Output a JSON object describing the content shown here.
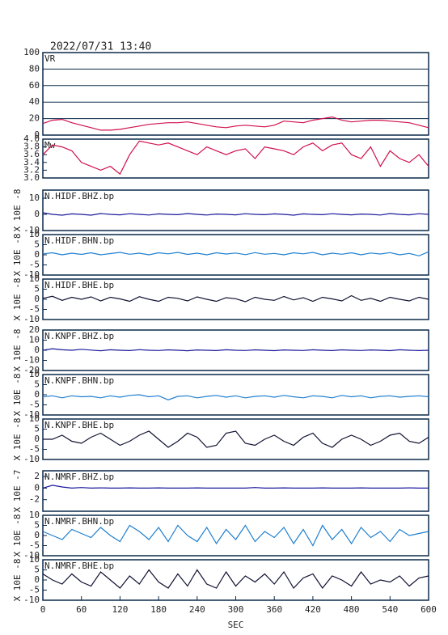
{
  "header": {
    "title": "2022/07/31 13:40"
  },
  "chart_data": [
    {
      "type": "line",
      "xlim": [
        0,
        600
      ],
      "ylim": [
        0,
        100
      ],
      "yticks": [
        0,
        20,
        40,
        60,
        80,
        100
      ],
      "grid": true,
      "x": [
        0,
        15,
        30,
        45,
        60,
        75,
        90,
        105,
        120,
        135,
        150,
        165,
        180,
        195,
        210,
        225,
        240,
        255,
        270,
        285,
        300,
        315,
        330,
        345,
        360,
        375,
        390,
        405,
        420,
        435,
        450,
        465,
        480,
        495,
        510,
        525,
        540,
        555,
        570,
        585,
        600
      ],
      "series": [
        {
          "name": "VR",
          "color": "#d0104c",
          "values": [
            14,
            18,
            19,
            15,
            12,
            9,
            6,
            6,
            7,
            9,
            11,
            13,
            14,
            15,
            15,
            16,
            14,
            12,
            10,
            9,
            11,
            12,
            11,
            10,
            12,
            17,
            16,
            15,
            18,
            20,
            22,
            18,
            16,
            17,
            18,
            18,
            17,
            16,
            15,
            12,
            9
          ]
        }
      ]
    },
    {
      "type": "line",
      "xlim": [
        0,
        600
      ],
      "ylim": [
        3,
        4
      ],
      "yticks": [
        {
          "value": 3,
          "label": "3.0"
        },
        3.2,
        3.4,
        3.6,
        3.8,
        {
          "value": 4,
          "label": "4.0"
        }
      ],
      "grid": false,
      "x": [
        0,
        15,
        30,
        45,
        60,
        75,
        90,
        105,
        120,
        135,
        150,
        165,
        180,
        195,
        210,
        225,
        240,
        255,
        270,
        285,
        300,
        315,
        330,
        345,
        360,
        375,
        390,
        405,
        420,
        435,
        450,
        465,
        480,
        495,
        510,
        525,
        540,
        555,
        570,
        585,
        600
      ],
      "series": [
        {
          "name": "Mw",
          "color": "#d0104c",
          "values": [
            3.6,
            3.85,
            3.8,
            3.7,
            3.4,
            3.3,
            3.2,
            3.3,
            3.1,
            3.6,
            3.95,
            3.9,
            3.85,
            3.9,
            3.8,
            3.7,
            3.6,
            3.8,
            3.7,
            3.6,
            3.7,
            3.75,
            3.5,
            3.8,
            3.75,
            3.7,
            3.6,
            3.8,
            3.9,
            3.7,
            3.85,
            3.9,
            3.6,
            3.5,
            3.8,
            3.3,
            3.7,
            3.5,
            3.4,
            3.6,
            3.3
          ]
        }
      ]
    },
    {
      "type": "line",
      "xlim": [
        0,
        600
      ],
      "ylim": [
        -10,
        15
      ],
      "yticks": [
        -10,
        0,
        10
      ],
      "ylabel": "X 10E -8",
      "x": [
        0,
        15,
        30,
        45,
        60,
        75,
        90,
        105,
        120,
        135,
        150,
        165,
        180,
        195,
        210,
        225,
        240,
        255,
        270,
        285,
        300,
        315,
        330,
        345,
        360,
        375,
        390,
        405,
        420,
        435,
        450,
        465,
        480,
        495,
        510,
        525,
        540,
        555,
        570,
        585,
        600
      ],
      "series": [
        {
          "name": "N.HIDF.BHZ.bp",
          "color": "#1a1a9a",
          "values": [
            1,
            0,
            -0.5,
            0.3,
            0,
            -0.5,
            0.5,
            0,
            -0.3,
            0.4,
            0,
            -0.4,
            0.3,
            0,
            -0.2,
            0.5,
            0,
            -0.4,
            0.2,
            0,
            -0.3,
            0.4,
            0,
            -0.2,
            0.3,
            0,
            -0.5,
            0.3,
            0,
            -0.2,
            0.4,
            0,
            -0.3,
            0.2,
            0,
            -0.4,
            0.5,
            0,
            -0.3,
            0.4,
            0
          ]
        }
      ]
    },
    {
      "type": "line",
      "xlim": [
        0,
        600
      ],
      "ylim": [
        -10,
        10
      ],
      "yticks": [
        -10,
        -5,
        0,
        5,
        10
      ],
      "ylabel": "X 10E -8",
      "x": [
        0,
        15,
        30,
        45,
        60,
        75,
        90,
        105,
        120,
        135,
        150,
        165,
        180,
        195,
        210,
        225,
        240,
        255,
        270,
        285,
        300,
        315,
        330,
        345,
        360,
        375,
        390,
        405,
        420,
        435,
        450,
        465,
        480,
        495,
        510,
        525,
        540,
        555,
        570,
        585,
        600
      ],
      "series": [
        {
          "name": "N.HIDF.BHN.bp",
          "color": "#1e7fd0",
          "values": [
            0.5,
            1,
            0,
            0.8,
            0.2,
            1,
            0,
            0.6,
            1.2,
            0.3,
            0.8,
            0,
            1,
            0.5,
            1.2,
            0.2,
            0.8,
            0,
            1,
            0.4,
            0.9,
            0.1,
            1.1,
            0.3,
            0.7,
            0,
            1,
            0.5,
            1.2,
            0,
            0.8,
            0.3,
            1,
            0,
            0.9,
            0.4,
            1.1,
            0,
            0.7,
            -0.5,
            1.5
          ]
        }
      ]
    },
    {
      "type": "line",
      "xlim": [
        0,
        600
      ],
      "ylim": [
        -10,
        10
      ],
      "yticks": [
        -10,
        -5,
        0,
        5,
        10
      ],
      "ylabel": "X 10E -8",
      "x": [
        0,
        15,
        30,
        45,
        60,
        75,
        90,
        105,
        120,
        135,
        150,
        165,
        180,
        195,
        210,
        225,
        240,
        255,
        270,
        285,
        300,
        315,
        330,
        345,
        360,
        375,
        390,
        405,
        420,
        435,
        450,
        465,
        480,
        495,
        510,
        525,
        540,
        555,
        570,
        585,
        600
      ],
      "series": [
        {
          "name": "N.HIDF.BHE.bp",
          "color": "#111133",
          "values": [
            0.5,
            1.5,
            -0.5,
            1,
            0,
            1.2,
            -0.8,
            1,
            0.2,
            -1,
            1.3,
            0,
            -1,
            1,
            0.5,
            -0.8,
            1.2,
            0,
            -1,
            0.8,
            0.3,
            -1.2,
            1,
            0,
            -0.5,
            1.4,
            -0.3,
            0.8,
            -1,
            1,
            0.2,
            -0.8,
            1.8,
            -0.5,
            0.5,
            -1,
            1,
            0,
            -0.8,
            1,
            0
          ]
        }
      ]
    },
    {
      "type": "line",
      "xlim": [
        0,
        600
      ],
      "ylim": [
        -20,
        20
      ],
      "yticks": [
        -20,
        -10,
        0,
        10,
        20
      ],
      "ylabel": "X 10E -8",
      "x": [
        0,
        15,
        30,
        45,
        60,
        75,
        90,
        105,
        120,
        135,
        150,
        165,
        180,
        195,
        210,
        225,
        240,
        255,
        270,
        285,
        300,
        315,
        330,
        345,
        360,
        375,
        390,
        405,
        420,
        435,
        450,
        465,
        480,
        495,
        510,
        525,
        540,
        555,
        570,
        585,
        600
      ],
      "series": [
        {
          "name": "N.KNPF.BHZ.bp",
          "color": "#1a1a9a",
          "values": [
            0,
            1.5,
            0.5,
            0,
            1,
            0.2,
            -0.5,
            0.5,
            0,
            -0.3,
            0.6,
            0,
            -0.2,
            0.4,
            0,
            -0.5,
            0.3,
            0,
            -0.3,
            0.5,
            0,
            -0.2,
            0.4,
            0,
            -0.4,
            0.3,
            0,
            -0.2,
            0.5,
            0,
            -0.3,
            0.4,
            0,
            -0.2,
            0.3,
            0,
            -0.4,
            0.5,
            0,
            -0.3,
            0
          ]
        }
      ]
    },
    {
      "type": "line",
      "xlim": [
        0,
        600
      ],
      "ylim": [
        -10,
        10
      ],
      "yticks": [
        -10,
        -5,
        0,
        5,
        10
      ],
      "ylabel": "X 10E -8",
      "x": [
        0,
        15,
        30,
        45,
        60,
        75,
        90,
        105,
        120,
        135,
        150,
        165,
        180,
        195,
        210,
        225,
        240,
        255,
        270,
        285,
        300,
        315,
        330,
        345,
        360,
        375,
        390,
        405,
        420,
        435,
        450,
        465,
        480,
        495,
        510,
        525,
        540,
        555,
        570,
        585,
        600
      ],
      "series": [
        {
          "name": "N.KNPF.BHN.bp",
          "color": "#1e7fd0",
          "values": [
            -1,
            -0.5,
            -1.5,
            -0.5,
            -1,
            -0.8,
            -1.5,
            -0.5,
            -1.2,
            -0.3,
            0,
            -1,
            -0.5,
            -2.5,
            -0.8,
            -0.5,
            -1.5,
            -0.8,
            -0.3,
            -1.2,
            -0.5,
            -1.5,
            -0.8,
            -0.5,
            -1.2,
            -0.3,
            -1,
            -1.5,
            -0.5,
            -0.8,
            -1.5,
            -0.3,
            -1,
            -0.5,
            -1.5,
            -0.8,
            -0.5,
            -1.2,
            -0.8,
            -0.5,
            -1
          ]
        }
      ]
    },
    {
      "type": "line",
      "xlim": [
        0,
        600
      ],
      "ylim": [
        -10,
        10
      ],
      "yticks": [
        -10,
        -5,
        0,
        5,
        10
      ],
      "ylabel": "X 10E -8",
      "x": [
        0,
        15,
        30,
        45,
        60,
        75,
        90,
        105,
        120,
        135,
        150,
        165,
        180,
        195,
        210,
        225,
        240,
        255,
        270,
        285,
        300,
        315,
        330,
        345,
        360,
        375,
        390,
        405,
        420,
        435,
        450,
        465,
        480,
        495,
        510,
        525,
        540,
        555,
        570,
        585,
        600
      ],
      "series": [
        {
          "name": "N.KNPF.BHE.bp",
          "color": "#111133",
          "values": [
            0,
            0,
            2,
            -1,
            -2,
            1,
            3,
            0,
            -3,
            -1,
            2,
            4,
            0,
            -4,
            -1,
            3,
            1,
            -4,
            -3,
            3,
            4,
            -2,
            -3,
            0,
            2,
            -1,
            -3,
            1,
            3,
            -2,
            -4,
            0,
            2,
            0,
            -3,
            -1,
            2,
            3,
            -1,
            -2,
            1
          ]
        }
      ]
    },
    {
      "type": "line",
      "xlim": [
        0,
        600
      ],
      "ylim": [
        -4,
        3
      ],
      "yticks": [
        -2,
        0,
        2
      ],
      "ylabel": "X 10E -7",
      "x": [
        0,
        15,
        30,
        45,
        60,
        75,
        90,
        105,
        120,
        135,
        150,
        165,
        180,
        195,
        210,
        225,
        240,
        255,
        270,
        285,
        300,
        315,
        330,
        345,
        360,
        375,
        390,
        405,
        420,
        435,
        450,
        465,
        480,
        495,
        510,
        525,
        540,
        555,
        570,
        585,
        600
      ],
      "series": [
        {
          "name": "N.NMRF.BHZ.bp",
          "color": "#1a1a9a",
          "values": [
            0,
            0.5,
            0.2,
            0,
            0.1,
            0,
            0.05,
            0,
            0,
            0.05,
            0,
            0,
            0.05,
            0,
            0,
            0,
            0.05,
            0,
            0,
            0,
            0,
            0,
            0.1,
            0,
            0,
            0.05,
            0,
            0,
            0,
            0.05,
            0,
            0,
            0,
            0.05,
            0,
            0,
            0,
            0,
            0.05,
            0,
            0
          ]
        }
      ]
    },
    {
      "type": "line",
      "xlim": [
        0,
        600
      ],
      "ylim": [
        -10,
        10
      ],
      "yticks": [
        -10,
        -5,
        0,
        5,
        10
      ],
      "ylabel": "X 10E -8",
      "x": [
        0,
        15,
        30,
        45,
        60,
        75,
        90,
        105,
        120,
        135,
        150,
        165,
        180,
        195,
        210,
        225,
        240,
        255,
        270,
        285,
        300,
        315,
        330,
        345,
        360,
        375,
        390,
        405,
        420,
        435,
        450,
        465,
        480,
        495,
        510,
        525,
        540,
        555,
        570,
        585,
        600
      ],
      "series": [
        {
          "name": "N.NMRF.BHN.bp",
          "color": "#1e7fd0",
          "values": [
            2,
            0,
            -2,
            3,
            1,
            -1,
            4,
            0,
            -3,
            5,
            2,
            -2,
            4,
            -3,
            5,
            0,
            -3,
            4,
            -4,
            3,
            -2,
            5,
            -3,
            2,
            -1,
            4,
            -4,
            3,
            -5,
            5,
            -2,
            3,
            -4,
            4,
            -1,
            2,
            -3,
            3,
            0,
            1,
            2
          ]
        }
      ]
    },
    {
      "type": "line",
      "xlim": [
        0,
        600
      ],
      "ylim": [
        -10,
        10
      ],
      "yticks": [
        -10,
        -5,
        0,
        5,
        10
      ],
      "xticks": [
        0,
        60,
        120,
        180,
        240,
        300,
        360,
        420,
        480,
        540,
        600
      ],
      "xlabel": "SEC",
      "ylabel": "X 10E -8",
      "x": [
        0,
        15,
        30,
        45,
        60,
        75,
        90,
        105,
        120,
        135,
        150,
        165,
        180,
        195,
        210,
        225,
        240,
        255,
        270,
        285,
        300,
        315,
        330,
        345,
        360,
        375,
        390,
        405,
        420,
        435,
        450,
        465,
        480,
        495,
        510,
        525,
        540,
        555,
        570,
        585,
        600
      ],
      "series": [
        {
          "name": "N.NMRF.BHE.bp",
          "color": "#111133",
          "values": [
            3,
            0,
            -2,
            3,
            -1,
            -3,
            4,
            0,
            -4,
            2,
            -2,
            5,
            -1,
            -4,
            3,
            -3,
            5,
            -2,
            -4,
            4,
            -3,
            2,
            -1,
            3,
            -2,
            4,
            -4,
            1,
            3,
            -4,
            2,
            0,
            -3,
            4,
            -2,
            0,
            -1,
            2,
            -3,
            1,
            2
          ]
        }
      ]
    }
  ]
}
